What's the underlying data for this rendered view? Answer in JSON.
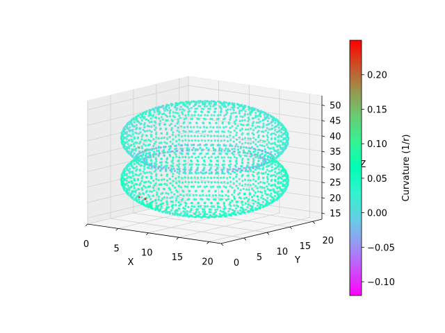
{
  "chart_data": {
    "type": "scatter",
    "subtype": "3d-scatter",
    "title": "",
    "xlabel": "X",
    "ylabel": "Y",
    "zlabel": "Z",
    "xlim": [
      0,
      22
    ],
    "ylim": [
      0,
      22
    ],
    "zlim": [
      13,
      53
    ],
    "x_ticks": [
      0,
      5,
      10,
      15,
      20
    ],
    "y_ticks": [
      0,
      5,
      10,
      15,
      20
    ],
    "z_ticks": [
      15,
      20,
      25,
      30,
      35,
      40,
      45,
      50
    ],
    "grid": true,
    "colorbar": {
      "label": "Curvature (1/r)",
      "colormap": "rainbow",
      "min": -0.12,
      "max": 0.25,
      "ticks": [
        -0.1,
        -0.05,
        0.0,
        0.05,
        0.1,
        0.15,
        0.2
      ],
      "tick_labels": [
        "−0.10",
        "−0.05",
        "0.00",
        "0.05",
        "0.10",
        "0.15",
        "0.20"
      ]
    },
    "surface": {
      "description_values": "two stacked ellipsoidal lobes joined by a narrow neck",
      "center_x": 11,
      "center_y": 11,
      "upper_lobe": {
        "z_center": 40,
        "z_half_height": 11,
        "radius": 11,
        "curvature": 0.02
      },
      "lower_lobe": {
        "z_center": 26.5,
        "z_half_height": 11,
        "radius": 11,
        "curvature": 0.04
      },
      "neck": {
        "z": 33,
        "radius": 8,
        "curvature": -0.03
      },
      "highlight_points": [
        {
          "x": 7,
          "y": 2,
          "z": 39,
          "curvature": 0.15
        },
        {
          "x": 8,
          "y": 2,
          "z": 38.5,
          "curvature": 0.14
        },
        {
          "x": 7,
          "y": 2,
          "z": 23,
          "curvature": 0.22
        },
        {
          "x": 8,
          "y": 2,
          "z": 22.7,
          "curvature": 0.24
        }
      ]
    }
  }
}
